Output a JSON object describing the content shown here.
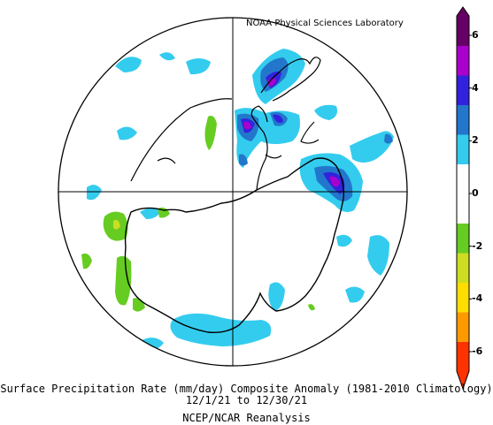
{
  "credit": "NOAA Physical Sciences Laboratory",
  "caption": {
    "line1": "Surface Precipitation Rate (mm/day) Composite Anomaly (1981-2010 Climatology)",
    "line2": "12/1/21  to 12/30/21",
    "line3": "NCEP/NCAR Reanalysis"
  },
  "colorbar": {
    "tick_labels": [
      "6",
      "4",
      "2",
      "0",
      "-2",
      "-4",
      "-6"
    ],
    "colors": [
      "#ff3300",
      "#ff9900",
      "#ffdd00",
      "#ccdd22",
      "#66cc22",
      "#ffffff",
      "#ffffff",
      "#33ccee",
      "#2277cc",
      "#3322dd",
      "#aa00cc",
      "#660066"
    ]
  },
  "map": {
    "projection": "south-polar-stereographic",
    "anomaly_colors": {
      "light_blue": "#33ccee",
      "blue": "#2277cc",
      "dark_blue": "#3322dd",
      "magenta": "#aa00cc",
      "purple": "#660066",
      "green": "#66cc22",
      "yellow_green": "#ccdd22"
    }
  }
}
